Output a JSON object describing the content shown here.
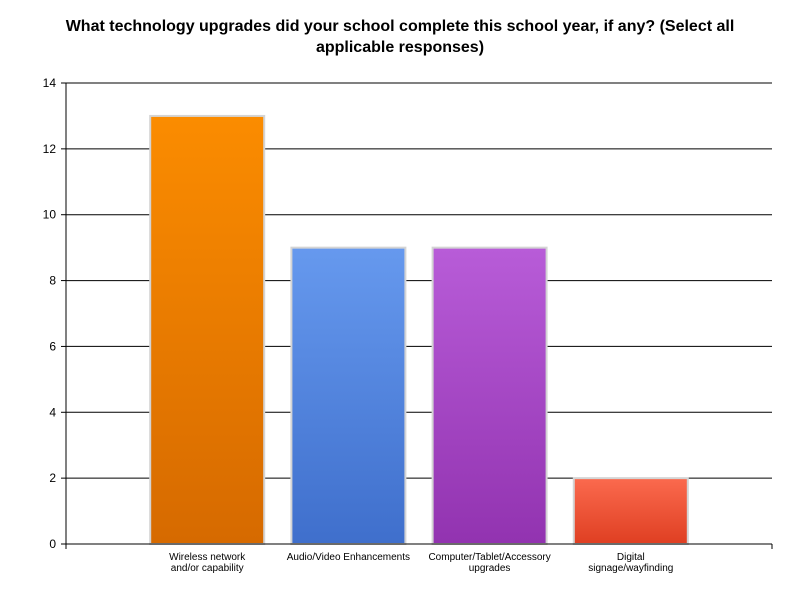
{
  "chart_data": {
    "type": "bar",
    "title": "What technology upgrades did your school complete this school year, if any? (Select all applicable responses)",
    "xlabel": "",
    "ylabel": "",
    "ylim": [
      0,
      14
    ],
    "yticks": [
      "0",
      "2",
      "4",
      "6",
      "8",
      "10",
      "12",
      "14"
    ],
    "grid": true,
    "categories": [
      [
        "Wireless network",
        "and/or capability"
      ],
      [
        "Audio/Video Enhancements"
      ],
      [
        "Computer/Tablet/Accessory",
        "upgrades"
      ],
      [
        "Digital",
        "signage/wayfinding"
      ]
    ],
    "values": [
      13,
      9,
      9,
      2
    ],
    "colors": [
      [
        "#fb8c00",
        "#d66a00"
      ],
      [
        "#6699ee",
        "#3f6fcc"
      ],
      [
        "#b85cd8",
        "#9233b0"
      ],
      [
        "#fb6a4e",
        "#df3f22"
      ]
    ]
  }
}
